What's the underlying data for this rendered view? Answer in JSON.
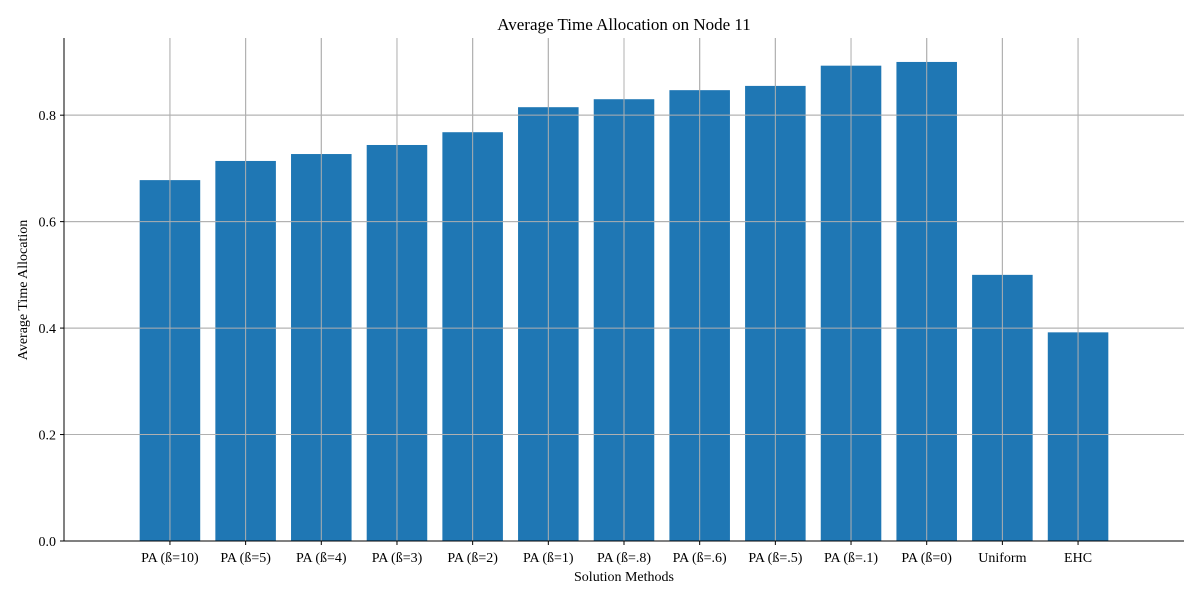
{
  "chart_data": {
    "type": "bar",
    "title": "Average Time Allocation on Node 11",
    "xlabel": "Solution Methods",
    "ylabel": "Average Time Allocation",
    "categories": [
      "PA (ß=10)",
      "PA (ß=5)",
      "PA (ß=4)",
      "PA (ß=3)",
      "PA (ß=2)",
      "PA (ß=1)",
      "PA (ß=.8)",
      "PA (ß=.6)",
      "PA (ß=.5)",
      "PA (ß=.1)",
      "PA (ß=0)",
      "Uniform",
      "EHC"
    ],
    "values": [
      0.678,
      0.714,
      0.727,
      0.744,
      0.768,
      0.815,
      0.83,
      0.847,
      0.855,
      0.893,
      0.9,
      0.5,
      0.392
    ],
    "yticks": [
      0.0,
      0.2,
      0.4,
      0.6,
      0.8
    ],
    "ytick_labels": [
      "0.0",
      "0.2",
      "0.4",
      "0.6",
      "0.8"
    ],
    "ylim": [
      0,
      0.945
    ],
    "grid": true,
    "bar_color": "#1f77b4",
    "grid_color": "#b0b0b0"
  }
}
